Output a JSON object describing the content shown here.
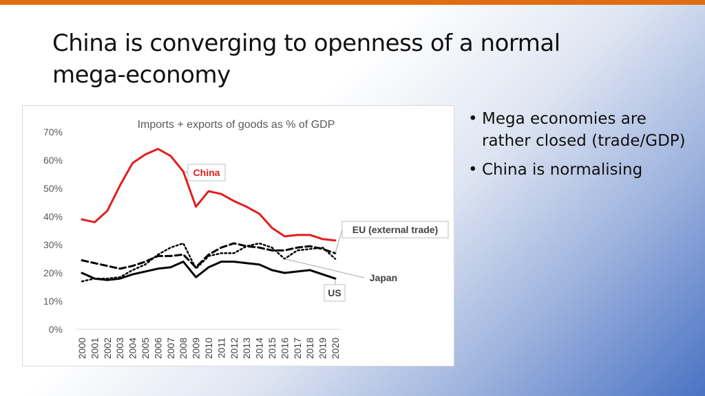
{
  "slide": {
    "title_line1": "China is converging to openness of a normal",
    "title_line2": "mega-economy"
  },
  "bullets": [
    "Mega economies are rather closed (trade/GDP)",
    "China is normalising"
  ],
  "colors": {
    "accent_bar": "#e06c13",
    "china": "#e21d1d",
    "others": "#000000"
  },
  "chart_data": {
    "type": "line",
    "title": "Imports + exports of goods as % of GDP",
    "x": [
      2000,
      2001,
      2002,
      2003,
      2004,
      2005,
      2006,
      2007,
      2008,
      2009,
      2010,
      2011,
      2012,
      2013,
      2014,
      2015,
      2016,
      2017,
      2018,
      2019,
      2020
    ],
    "ylim": [
      0,
      70
    ],
    "yticks": [
      "0%",
      "10%",
      "20%",
      "30%",
      "40%",
      "50%",
      "60%",
      "70%"
    ],
    "grid": false,
    "legend": "none (callout labels)",
    "series": [
      {
        "name": "China",
        "style": "solid-red",
        "values": [
          39,
          38,
          42,
          51,
          59,
          62,
          64,
          61.5,
          56,
          43.5,
          49,
          48,
          45.5,
          43.5,
          41,
          36,
          33,
          33.5,
          33.5,
          32,
          31.5
        ]
      },
      {
        "name": "EU (external trade)",
        "style": "dashed",
        "values": [
          24.5,
          23.5,
          22.5,
          21.5,
          22.5,
          24,
          26,
          26,
          26.5,
          22,
          26.5,
          29,
          30.5,
          29.5,
          29,
          28,
          28,
          29,
          29.5,
          28.5,
          27
        ]
      },
      {
        "name": "Japan",
        "style": "dotted",
        "values": [
          17,
          18,
          18,
          18.5,
          21,
          23,
          26.5,
          29,
          30.5,
          21.5,
          26,
          27,
          27,
          29.5,
          30.5,
          29,
          25,
          28,
          28.5,
          29,
          25
        ]
      },
      {
        "name": "US",
        "style": "solid-black",
        "values": [
          20,
          18,
          17.5,
          18,
          19.5,
          20.5,
          21.5,
          22,
          24,
          18.5,
          22,
          24,
          24,
          23.5,
          23,
          21,
          20,
          20.5,
          21,
          19.5,
          18
        ]
      }
    ]
  }
}
